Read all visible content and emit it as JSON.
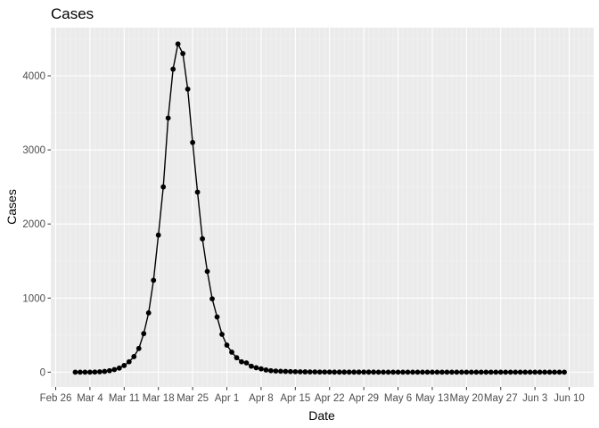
{
  "chart_data": {
    "type": "line",
    "title": "Cases",
    "xlabel": "Date",
    "ylabel": "Cases",
    "grid": true,
    "x_start": "2020-03-01",
    "x_tick_labels": [
      "Feb 26",
      "Mar 4",
      "Mar 11",
      "Mar 18",
      "Mar 25",
      "Apr 1",
      "Apr 8",
      "Apr 15",
      "Apr 22",
      "Apr 29",
      "May 6",
      "May 13",
      "May 20",
      "May 27",
      "Jun 3",
      "Jun 10"
    ],
    "y_tick_labels": [
      "0",
      "1000",
      "2000",
      "3000",
      "4000"
    ],
    "ylim": [
      -200,
      4650
    ],
    "series": [
      {
        "values": [
          0,
          0,
          0,
          0,
          2,
          5,
          10,
          20,
          35,
          55,
          90,
          140,
          210,
          320,
          520,
          800,
          1240,
          1850,
          2500,
          3430,
          4090,
          4430,
          4300,
          3820,
          3100,
          2430,
          1800,
          1360,
          990,
          745,
          510,
          365,
          270,
          195,
          140,
          125,
          80,
          60,
          45,
          30,
          20,
          15,
          12,
          10,
          8,
          6,
          5,
          4,
          3,
          3,
          2,
          2,
          2,
          1,
          1,
          1,
          1,
          1,
          1,
          1,
          1,
          1,
          0,
          0,
          0,
          0,
          0,
          0,
          0,
          0,
          0,
          0,
          0,
          0,
          0,
          0,
          0,
          0,
          0,
          0,
          0,
          0,
          0,
          0,
          0,
          0,
          0,
          0,
          0,
          0,
          0,
          0,
          0,
          0,
          0,
          0,
          0,
          0,
          0,
          0,
          0
        ]
      }
    ]
  }
}
